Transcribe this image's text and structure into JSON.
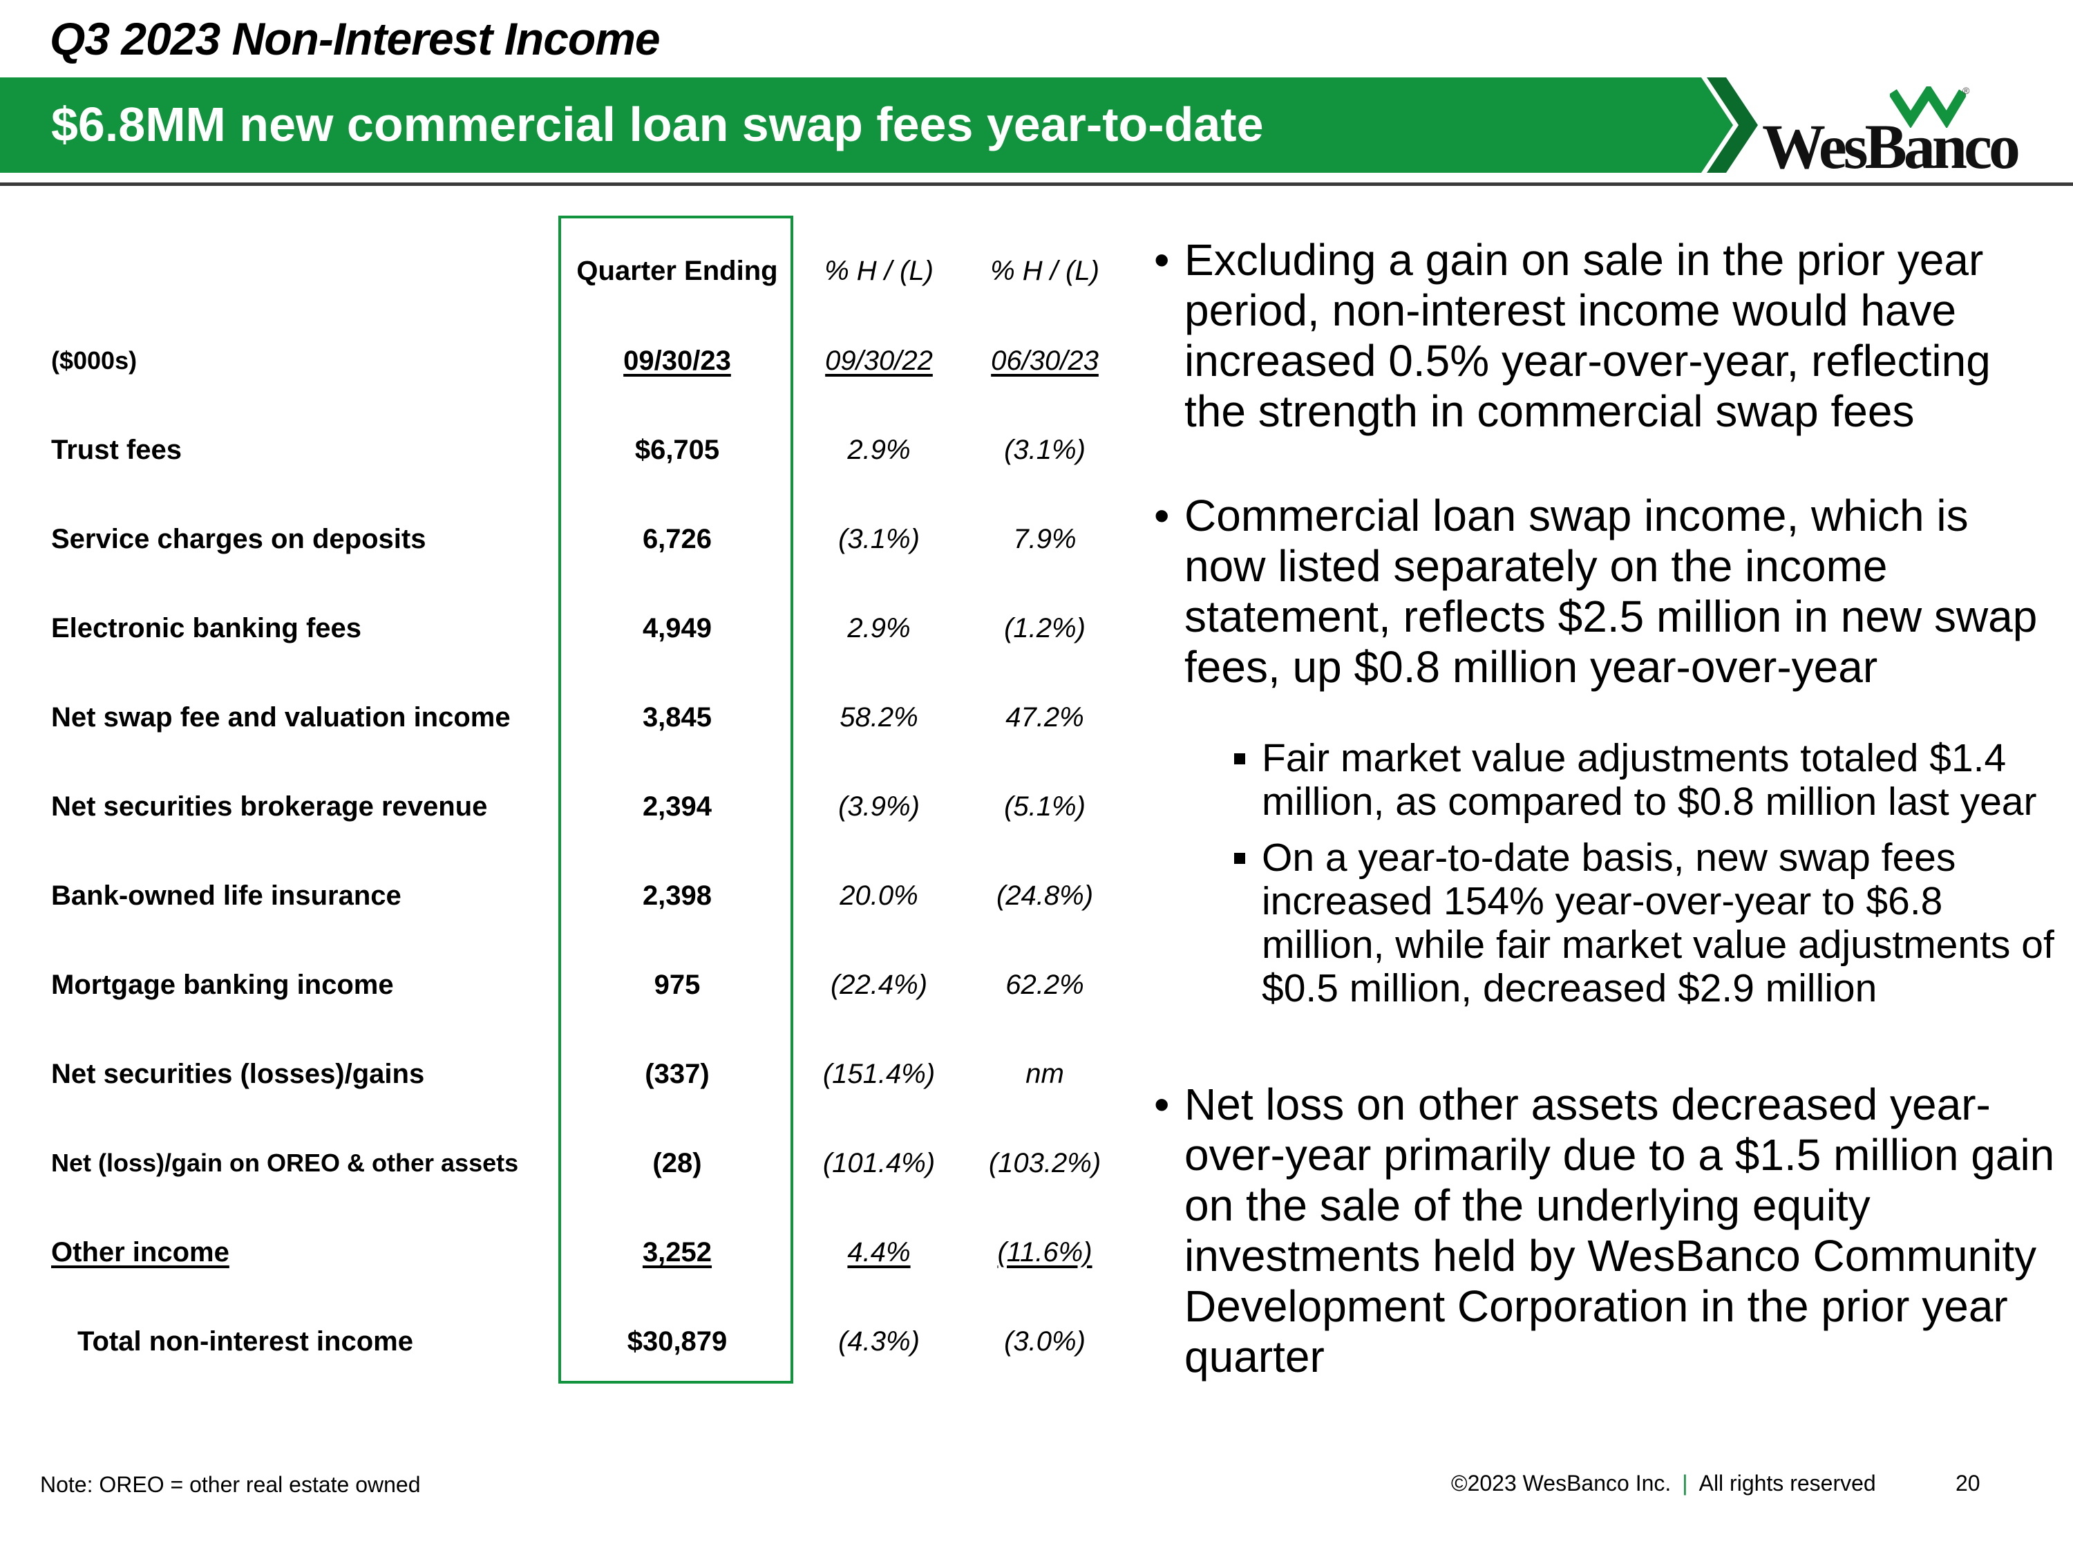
{
  "header": {
    "title": "Q3 2023 Non-Interest Income",
    "banner": "$6.8MM new commercial loan swap fees year-to-date",
    "logo_text": "WesBanco",
    "logo_reg": "®"
  },
  "colors": {
    "accent": "#12933e",
    "accent_dark": "#0b6b2c",
    "text": "#000000"
  },
  "table": {
    "header": {
      "quarter_ending": "Quarter Ending",
      "pct1": "% H / (L)",
      "pct2": "% H / (L)"
    },
    "dates": {
      "label": "($000s)",
      "q": "09/30/23",
      "d1": "09/30/22",
      "d2": "06/30/23"
    },
    "rows": [
      {
        "label": "Trust fees",
        "value": "$6,705",
        "p1": "2.9%",
        "p2": "(3.1%)"
      },
      {
        "label": "Service charges on deposits",
        "value": "6,726",
        "p1": "(3.1%)",
        "p2": "7.9%"
      },
      {
        "label": "Electronic banking fees",
        "value": "4,949",
        "p1": "2.9%",
        "p2": "(1.2%)"
      },
      {
        "label": "Net swap fee and valuation income",
        "value": "3,845",
        "p1": "58.2%",
        "p2": "47.2%"
      },
      {
        "label": "Net securities brokerage revenue",
        "value": "2,394",
        "p1": "(3.9%)",
        "p2": "(5.1%)"
      },
      {
        "label": "Bank-owned life insurance",
        "value": "2,398",
        "p1": "20.0%",
        "p2": "(24.8%)"
      },
      {
        "label": "Mortgage banking income",
        "value": "975",
        "p1": "(22.4%)",
        "p2": "62.2%"
      },
      {
        "label": "Net securities (losses)/gains",
        "value": "(337)",
        "p1": "(151.4%)",
        "p2": "nm"
      },
      {
        "label": "Net (loss)/gain on OREO & other assets",
        "value": "(28)",
        "p1": "(101.4%)",
        "p2": "(103.2%)"
      },
      {
        "label": "Other income",
        "value": "3,252",
        "p1": "4.4%",
        "p2": "(11.6%)"
      }
    ],
    "total": {
      "label": "Total non-interest income",
      "value": "$30,879",
      "p1": "(4.3%)",
      "p2": "(3.0%)"
    }
  },
  "bullets": {
    "b1": "Excluding a gain on sale in the prior year period, non-interest income would have increased 0.5% year-over-year, reflecting the strength in commercial swap fees",
    "b2": "Commercial loan swap income, which is now listed separately on the income statement, reflects $2.5 million in new swap fees, up $0.8 million year-over-year",
    "b2_sub1": "Fair market value adjustments totaled $1.4 million, as compared to $0.8 million last year",
    "b2_sub2": "On a year-to-date basis, new swap fees increased 154% year-over-year to $6.8 million, while fair market value adjustments of $0.5 million, decreased $2.9 million",
    "b3": "Net loss on other assets decreased year-over-year primarily due to a $1.5 million gain on the sale of the underlying equity investments held by WesBanco Community Development Corporation in the prior year quarter",
    "marker": "•"
  },
  "footer": {
    "note": "Note: OREO = other real estate owned",
    "copyright": "©2023 WesBanco Inc.",
    "sep": "|",
    "rights": "All rights reserved",
    "page": "20"
  }
}
